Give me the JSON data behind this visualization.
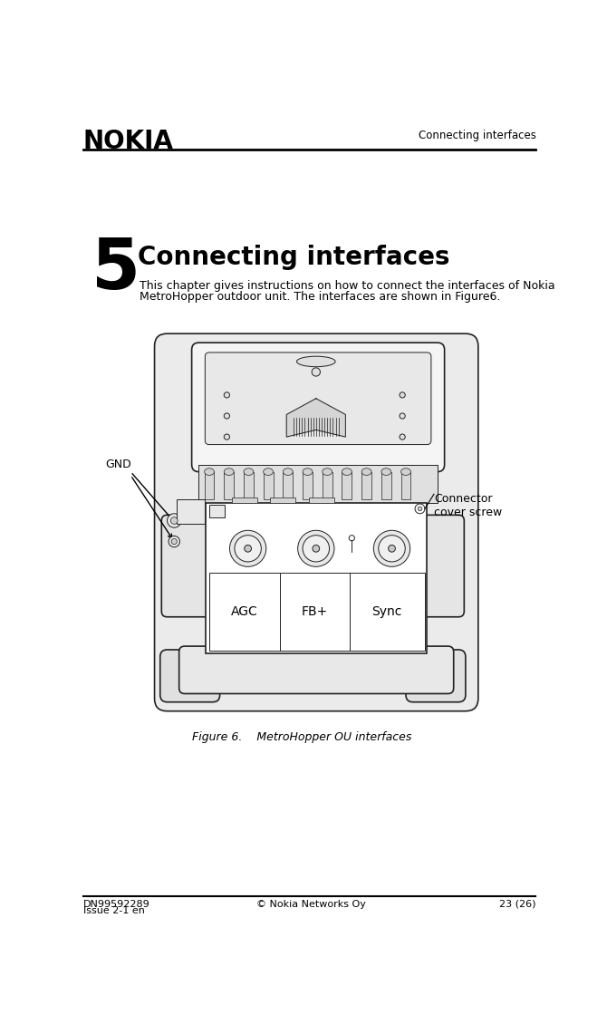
{
  "bg_color": "#ffffff",
  "header_title": "Connecting interfaces",
  "nokia_logo_text": "NOKIA",
  "chapter_number": "5",
  "chapter_title": "Connecting interfaces",
  "body_text_line1": "This chapter gives instructions on how to connect the interfaces of Nokia",
  "body_text_line2": "MetroHopper outdoor unit. The interfaces are shown in Figure6.",
  "figure_caption": "Figure 6.    MetroHopper OU interfaces",
  "footer_left1": "DN99592289",
  "footer_left2": "Issue 2-1 en",
  "footer_center": "© Nokia Networks Oy",
  "footer_right": "23 (26)",
  "label_gnd": "GND",
  "label_connector": "Connector\ncover screw",
  "label_agc": "AGC",
  "label_fb": "FB+",
  "label_sync": "Sync",
  "device_color_outline": "#222222",
  "device_color_fill": "#f0f0f0",
  "device_color_dark": "#d0d0d0"
}
